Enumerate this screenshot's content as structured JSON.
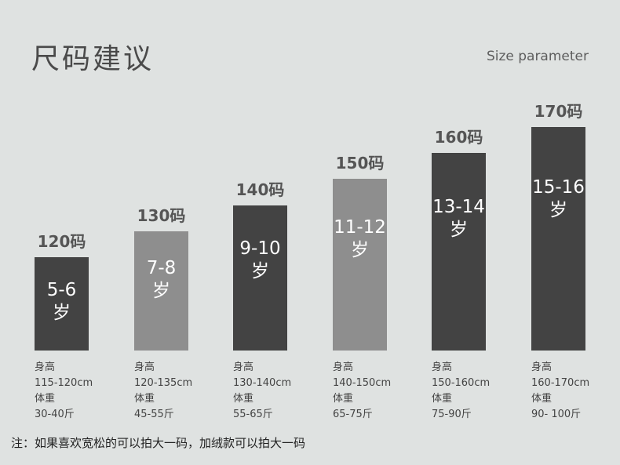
{
  "title": "尺码建议",
  "subtitle": "Size parameter",
  "chart_data": {
    "type": "bar",
    "categories": [
      "120码",
      "130码",
      "140码",
      "150码",
      "160码",
      "170码"
    ],
    "values": [
      120,
      130,
      140,
      150,
      160,
      170
    ],
    "ages": [
      [
        "5-6",
        "岁"
      ],
      [
        "7-8",
        "岁"
      ],
      [
        "9-10",
        "岁"
      ],
      [
        "11-12",
        "岁"
      ],
      [
        "13-14",
        "岁"
      ],
      [
        "15-16",
        "岁"
      ]
    ],
    "specs": [
      [
        "身高",
        "115-120cm",
        "体重",
        "30-40斤"
      ],
      [
        "身高",
        "120-135cm",
        "体重",
        "45-55斤"
      ],
      [
        "身高",
        "130-140cm",
        "体重",
        "55-65斤"
      ],
      [
        "身高",
        "140-150cm",
        "体重",
        "65-75斤"
      ],
      [
        "身高",
        "150-160cm",
        "体重",
        "75-90斤"
      ],
      [
        "身高",
        "160-170cm",
        "体重",
        "90- 100斤"
      ]
    ],
    "colors": [
      "#434343",
      "#8e8e8e",
      "#434343",
      "#8e8e8e",
      "#434343",
      "#434343"
    ]
  },
  "note": "注：如果喜欢宽松的可以拍大一码，加绒款可以拍大一码"
}
